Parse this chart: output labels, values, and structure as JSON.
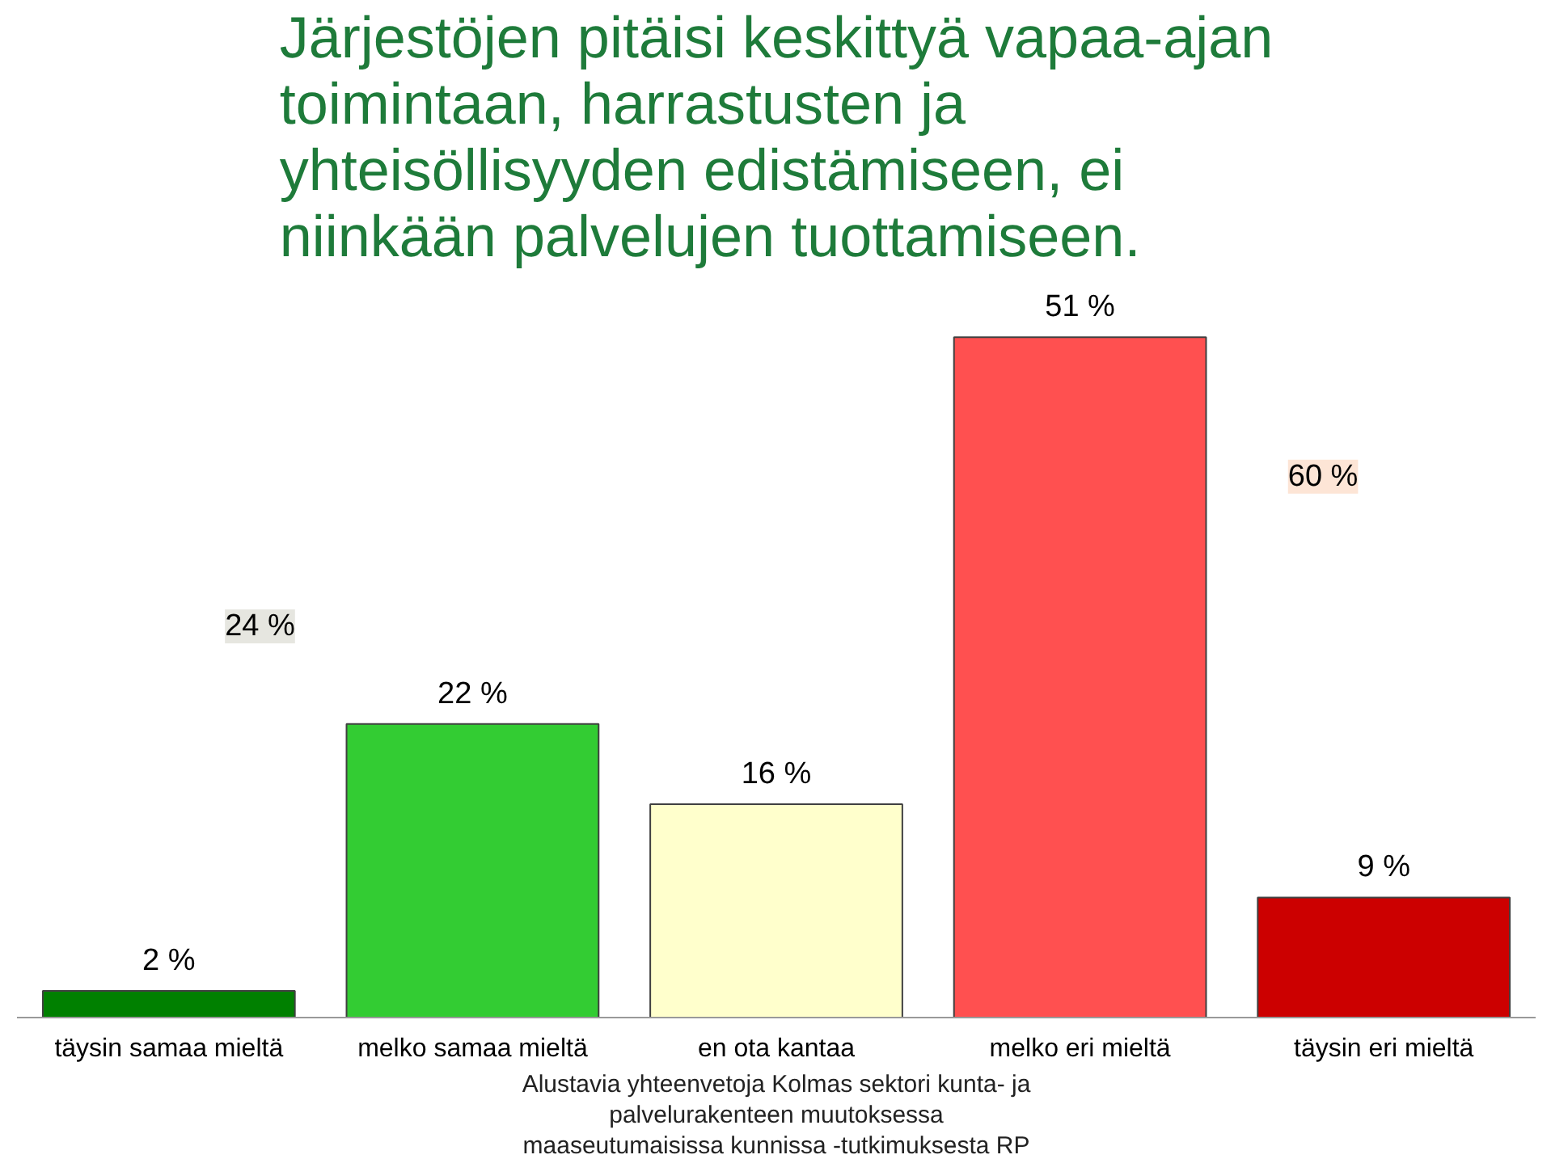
{
  "chart_data": {
    "type": "bar",
    "title": "Järjestöjen pitäisi keskittyä vapaa-ajan toimintaan, harrastusten ja yhteisöllisyyden edistämiseen, ei niinkään palvelujen tuottamiseen.",
    "categories": [
      "täysin samaa mieltä",
      "melko samaa mieltä",
      "en ota kantaa",
      "melko eri mieltä",
      "täysin eri mieltä"
    ],
    "values": [
      2,
      22,
      16,
      51,
      9
    ],
    "value_labels": [
      "2 %",
      "22 %",
      "16 %",
      "51 %",
      "9 %"
    ],
    "colors": [
      "#008000",
      "#33cc33",
      "#ffffcc",
      "#ff5050",
      "#cc0000"
    ],
    "grid": false,
    "annotations": [
      "24 %",
      "60 %",
      "Alustavia yhteenvetoja Kolmas sektori kunta- ja\npalvelurakenteen muutoksessa\nmaaseutumaisissa kunnissa -tutkimuksesta RP"
    ]
  }
}
